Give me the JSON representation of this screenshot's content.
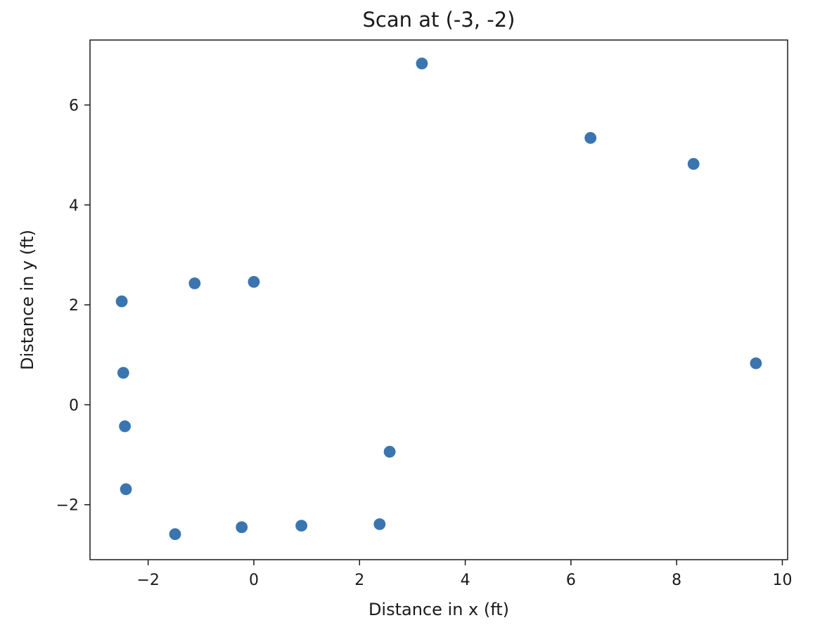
{
  "chart_data": {
    "type": "scatter",
    "title": "Scan at (-3, -2)",
    "xlabel": "Distance in x (ft)",
    "ylabel": "Distance in y (ft)",
    "xlim": [
      -3.1,
      10.1
    ],
    "ylim": [
      -3.1,
      7.3
    ],
    "xticks": [
      -2,
      0,
      2,
      4,
      6,
      8,
      10
    ],
    "yticks": [
      -2,
      0,
      2,
      4,
      6
    ],
    "xtick_labels": [
      "−2",
      "0",
      "2",
      "4",
      "6",
      "8",
      "10"
    ],
    "ytick_labels": [
      "−2",
      "0",
      "2",
      "4",
      "6"
    ],
    "grid": false,
    "marker_color": "#3a75b0",
    "series": [
      {
        "x": [
          3.18,
          6.37,
          8.32,
          -1.12,
          0.0,
          -2.5,
          -2.47,
          9.5,
          -2.44,
          2.57,
          -2.42,
          -1.49,
          -0.23,
          0.9,
          2.38
        ],
        "y": [
          6.83,
          5.34,
          4.82,
          2.43,
          2.46,
          2.07,
          0.64,
          0.83,
          -0.43,
          -0.94,
          -1.69,
          -2.59,
          -2.45,
          -2.42,
          -2.39
        ]
      }
    ]
  }
}
